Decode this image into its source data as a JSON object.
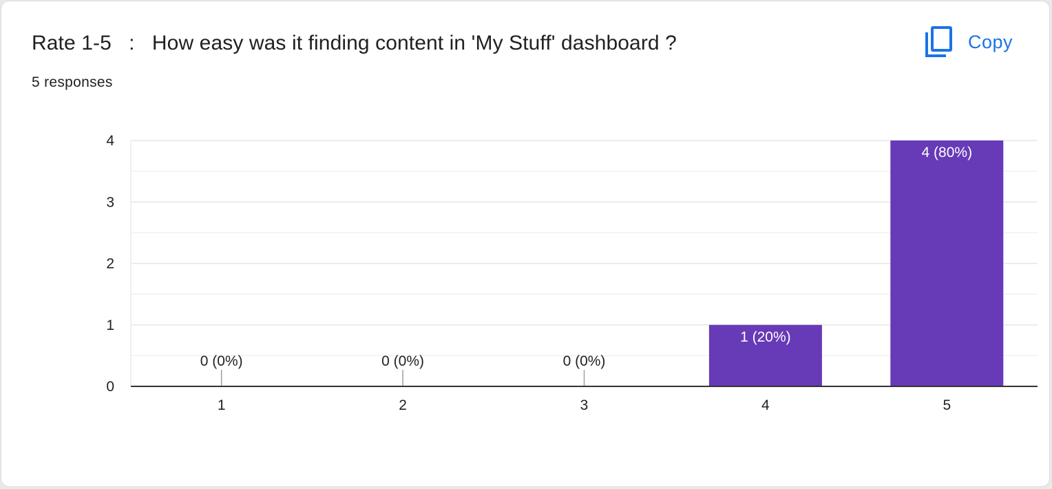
{
  "card": {
    "title": "Rate 1-5   :   How easy was it finding content in 'My Stuff' dashboard ?",
    "responses_label": "5 responses",
    "copy_label": "Copy",
    "copy_icon": "copy-icon"
  },
  "colors": {
    "bar": "#673ab7",
    "accent": "#1a73e8",
    "grid": "#e6e6e6",
    "axis": "#333333"
  },
  "chart_data": {
    "type": "bar",
    "categories": [
      "1",
      "2",
      "3",
      "4",
      "5"
    ],
    "values": [
      0,
      0,
      0,
      1,
      4
    ],
    "data_labels": [
      "0 (0%)",
      "0 (0%)",
      "0 (0%)",
      "1 (20%)",
      "4 (80%)"
    ],
    "title": "Rate 1-5   :   How easy was it finding content in 'My Stuff' dashboard ?",
    "subtitle": "5 responses",
    "xlabel": "",
    "ylabel": "",
    "ylim": [
      0,
      4
    ],
    "yticks": [
      0,
      1,
      2,
      3,
      4
    ],
    "grid": true,
    "minor_grid": true
  }
}
